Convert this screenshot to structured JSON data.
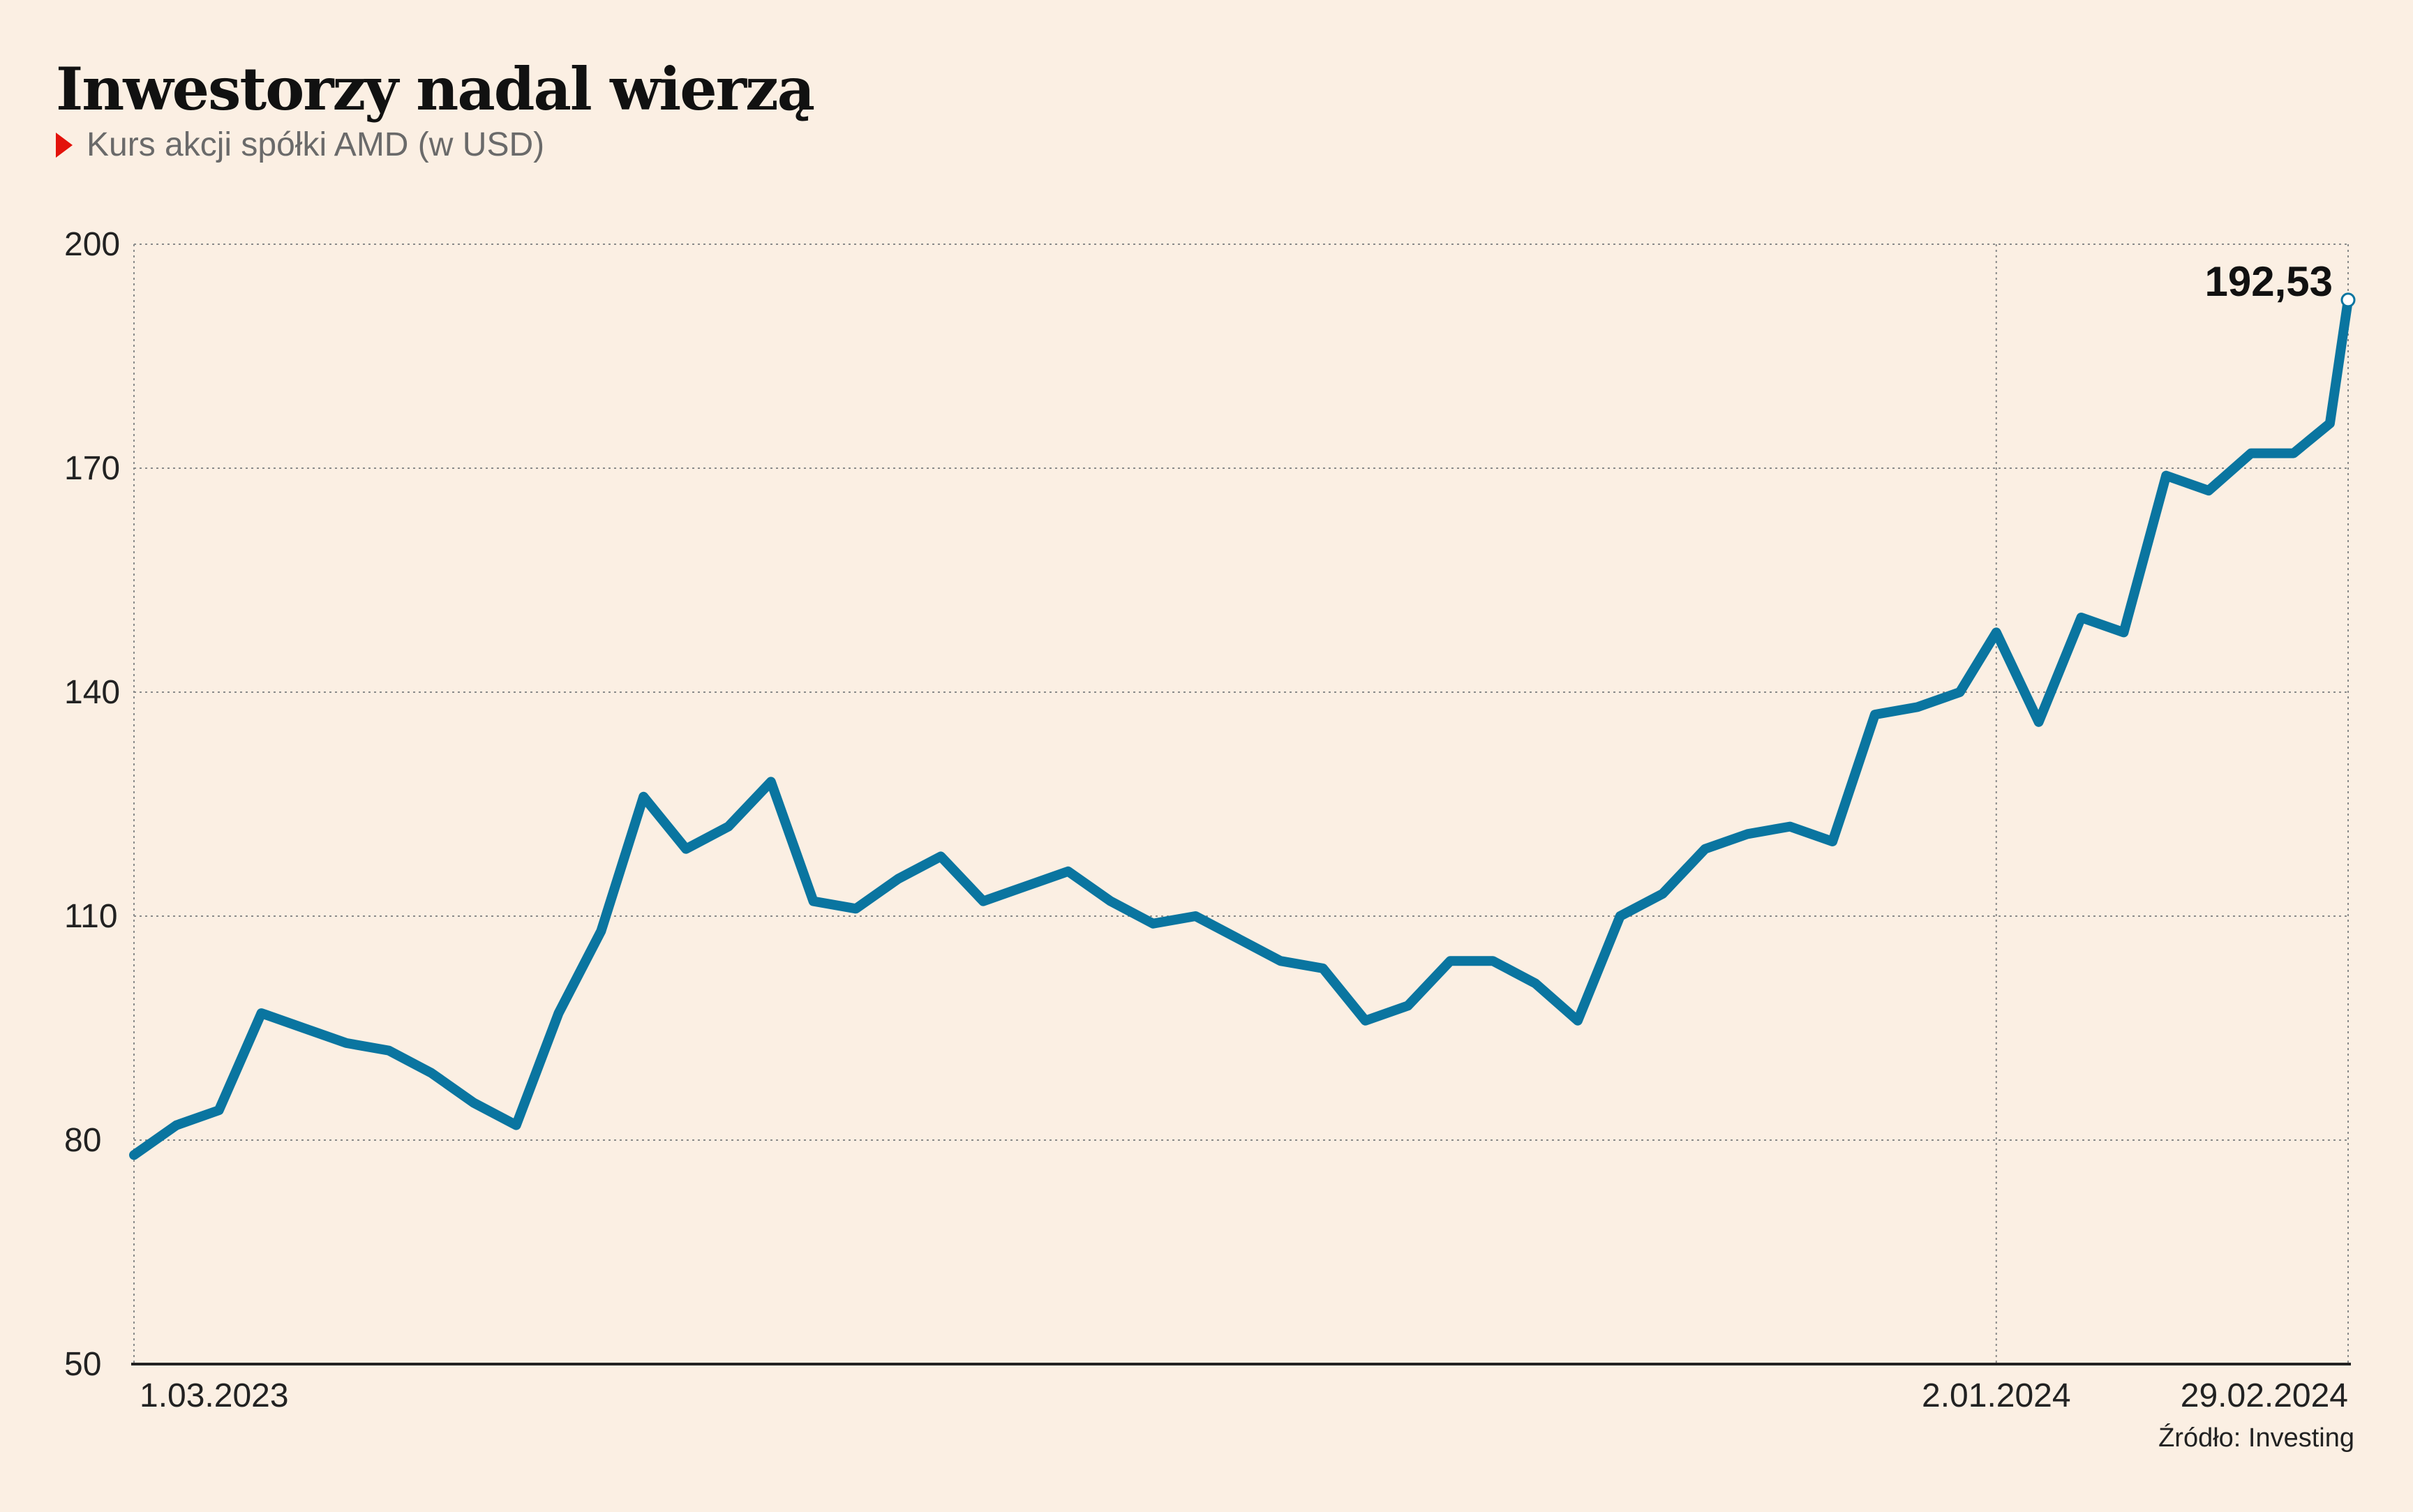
{
  "title": "Inwestorzy nadal wierzą",
  "subtitle": "Kurs akcji spółki AMD (w USD)",
  "source": "Źródło: Investing",
  "colors": {
    "background": "#FBEFE3",
    "line": "#0A75A0",
    "accent": "#E3120B",
    "grid": "#8a8a8a"
  },
  "chart_data": {
    "type": "line",
    "title": "Inwestorzy nadal wierzą",
    "subtitle": "Kurs akcji spółki AMD (w USD)",
    "xlabel": "",
    "ylabel": "",
    "ylim": [
      50,
      200
    ],
    "y_ticks": [
      "200",
      "170",
      "140",
      "110",
      "80",
      "50"
    ],
    "y_tick_values": [
      200,
      170,
      140,
      110,
      80,
      50
    ],
    "x_tick_labels": [
      "1.03.2023",
      "2.01.2024",
      "29.02.2024"
    ],
    "x_tick_dates": [
      "2023-03-01",
      "2024-01-02",
      "2024-02-29"
    ],
    "grid": "horizontal dotted lines at each y tick; vertical dotted lines at 2.01.2024 and 29.02.2024",
    "last_value_label": "192,53",
    "series": [
      {
        "x": [
          "2023-03-01",
          "2023-03-08",
          "2023-03-15",
          "2023-03-22",
          "2023-03-29",
          "2023-04-05",
          "2023-04-12",
          "2023-04-19",
          "2023-04-26",
          "2023-05-03",
          "2023-05-10",
          "2023-05-17",
          "2023-05-24",
          "2023-05-31",
          "2023-06-07",
          "2023-06-14",
          "2023-06-21",
          "2023-06-28",
          "2023-07-05",
          "2023-07-12",
          "2023-07-19",
          "2023-07-26",
          "2023-08-02",
          "2023-08-09",
          "2023-08-16",
          "2023-08-23",
          "2023-08-30",
          "2023-09-06",
          "2023-09-13",
          "2023-09-20",
          "2023-09-27",
          "2023-10-04",
          "2023-10-11",
          "2023-10-18",
          "2023-10-25",
          "2023-11-01",
          "2023-11-08",
          "2023-11-15",
          "2023-11-22",
          "2023-11-29",
          "2023-12-06",
          "2023-12-13",
          "2023-12-20",
          "2023-12-27",
          "2024-01-02",
          "2024-01-09",
          "2024-01-16",
          "2024-01-23",
          "2024-01-30",
          "2024-02-06",
          "2024-02-13",
          "2024-02-20",
          "2024-02-26",
          "2024-02-29"
        ],
        "values": [
          78,
          82,
          84,
          97,
          95,
          93,
          92,
          89,
          85,
          82,
          97,
          108,
          126,
          119,
          122,
          128,
          112,
          111,
          115,
          118,
          112,
          114,
          116,
          112,
          109,
          110,
          107,
          104,
          103,
          96,
          98,
          104,
          104,
          101,
          96,
          110,
          113,
          119,
          121,
          122,
          120,
          137,
          138,
          140,
          148,
          136,
          150,
          148,
          169,
          167,
          172,
          172,
          176,
          192.53
        ]
      }
    ]
  }
}
